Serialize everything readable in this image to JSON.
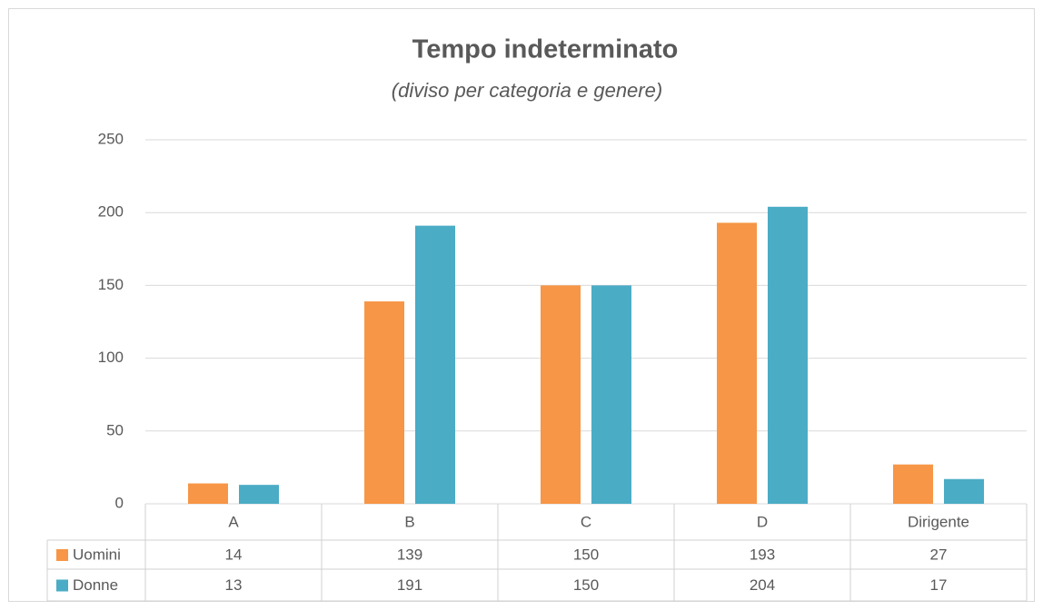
{
  "chart_data": {
    "type": "bar",
    "title": "Tempo indeterminato",
    "subtitle": "(diviso per categoria e genere)",
    "categories": [
      "A",
      "B",
      "C",
      "D",
      "Dirigente"
    ],
    "series": [
      {
        "name": "Uomini",
        "color": "#f79646",
        "values": [
          14,
          139,
          150,
          193,
          27
        ]
      },
      {
        "name": "Donne",
        "color": "#4bacc6",
        "values": [
          13,
          191,
          150,
          204,
          17
        ]
      }
    ],
    "ylim": [
      0,
      250
    ],
    "yticks": [
      0,
      50,
      100,
      150,
      200,
      250
    ],
    "grid": true,
    "data_table": true
  }
}
